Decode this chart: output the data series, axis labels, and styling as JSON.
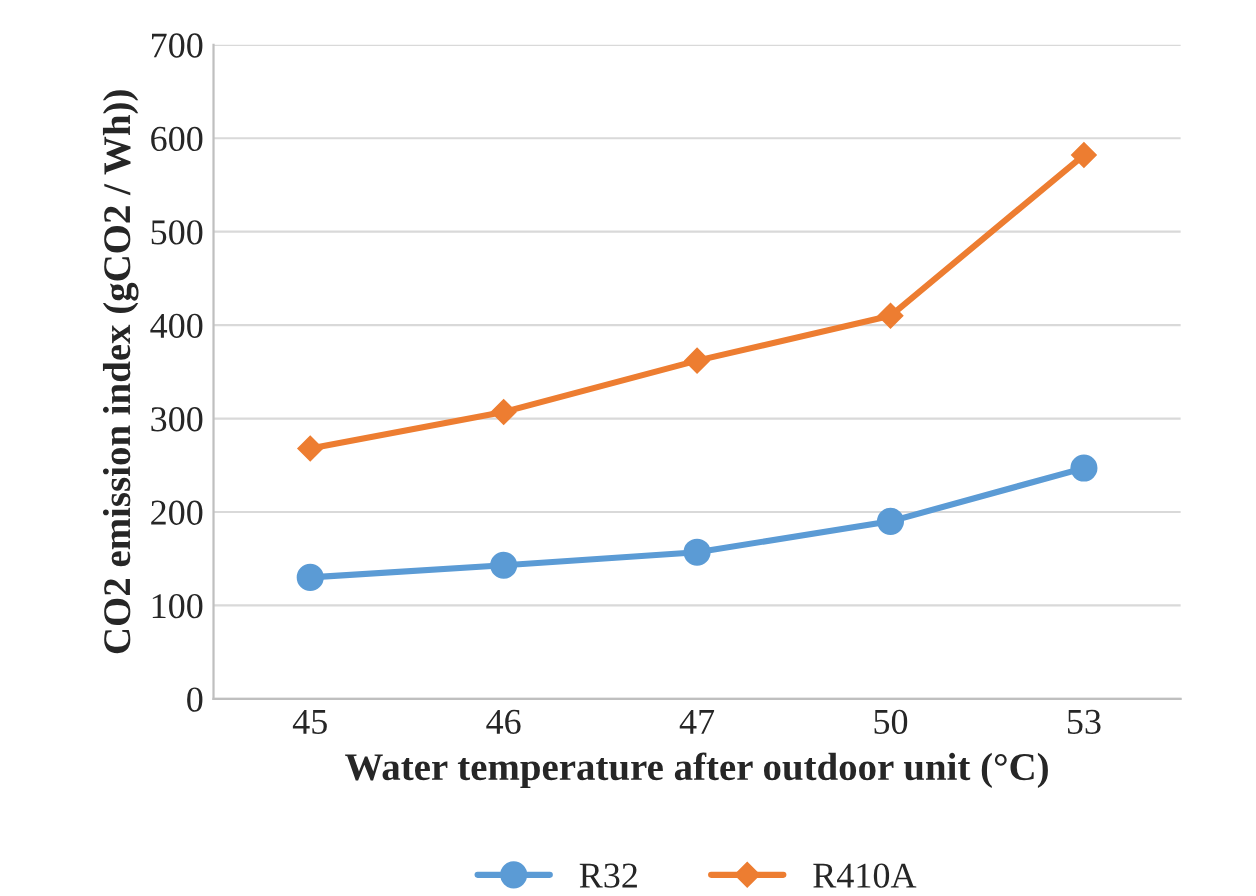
{
  "chart_data": {
    "type": "line",
    "xlabel": "Water temperature after outdoor unit (°C)",
    "ylabel": "CO2 emission index (gCO2 / Wh))",
    "categories": [
      "45",
      "46",
      "47",
      "50",
      "53"
    ],
    "series": [
      {
        "name": "R32",
        "color": "#5b9bd5",
        "marker": "circle",
        "values": [
          130,
          143,
          157,
          190,
          247
        ]
      },
      {
        "name": "R410A",
        "color": "#ed7d31",
        "marker": "diamond",
        "values": [
          268,
          307,
          362,
          410,
          582
        ]
      }
    ],
    "ylim": [
      0,
      700
    ],
    "yticks": [
      0,
      100,
      200,
      300,
      400,
      500,
      600,
      700
    ],
    "grid": "y",
    "legend": "bottom",
    "line_style": "solid"
  }
}
